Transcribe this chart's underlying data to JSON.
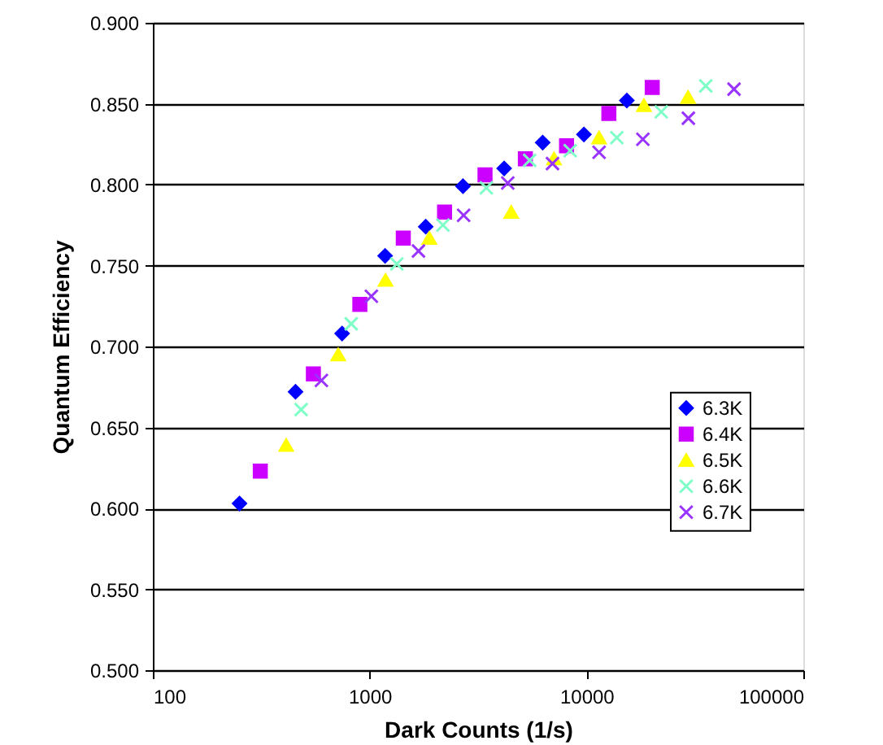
{
  "chart_data": {
    "type": "scatter",
    "xlabel": "Dark Counts (1/s)",
    "ylabel": "Quantum Efficiency",
    "log": "x",
    "xlim": [
      100,
      100000
    ],
    "xticks": [
      100,
      1000,
      10000,
      100000
    ],
    "ylim": [
      0.5,
      0.9
    ],
    "yticks": [
      {
        "value": 0.5,
        "label": "0.500"
      },
      {
        "value": 0.55,
        "label": "0.550"
      },
      {
        "value": 0.6,
        "label": "0.600"
      },
      {
        "value": 0.65,
        "label": "0.650"
      },
      {
        "value": 0.7,
        "label": "0.700"
      },
      {
        "value": 0.75,
        "label": "0.750"
      },
      {
        "value": 0.8,
        "label": "0.800"
      },
      {
        "value": 0.85,
        "label": "0.850"
      },
      {
        "value": 0.9,
        "label": "0.900"
      }
    ],
    "grid": "y",
    "legend": "right",
    "series": [
      {
        "name": "6.3K",
        "color": "#0000ff",
        "marker": "diamond",
        "x": [
          251,
          455,
          746,
          1178,
          1813,
          2693,
          4170,
          6280,
          9730,
          15350
        ],
        "values": [
          0.603,
          0.672,
          0.708,
          0.756,
          0.774,
          0.799,
          0.81,
          0.826,
          0.831,
          0.852
        ]
      },
      {
        "name": "6.4K",
        "color": "#cc00ff",
        "marker": "square",
        "x": [
          313,
          550,
          901,
          1429,
          2215,
          3404,
          5224,
          8090,
          12680,
          20100
        ],
        "values": [
          0.623,
          0.683,
          0.726,
          0.767,
          0.783,
          0.806,
          0.816,
          0.824,
          0.844,
          0.86
        ]
      },
      {
        "name": "6.5K",
        "color": "#ffff00",
        "marker": "triangle",
        "x": [
          412,
          716,
          1183,
          1884,
          4496,
          7080,
          11430,
          18400,
          29400
        ],
        "values": [
          0.639,
          0.695,
          0.741,
          0.767,
          0.783,
          0.816,
          0.829,
          0.849,
          0.854
        ]
      },
      {
        "name": "6.6K",
        "color": "#7fffc8",
        "marker": "cross",
        "x": [
          483,
          822,
          1334,
          2177,
          3451,
          5468,
          8410,
          13800,
          22130,
          35500
        ],
        "values": [
          0.661,
          0.714,
          0.751,
          0.775,
          0.798,
          0.815,
          0.821,
          0.829,
          0.845,
          0.861
        ]
      },
      {
        "name": "6.7K",
        "color": "#9933ff",
        "marker": "cross",
        "x": [
          599,
          1018,
          1679,
          2712,
          4333,
          6970,
          11430,
          18200,
          29500,
          47900
        ],
        "values": [
          0.679,
          0.731,
          0.759,
          0.781,
          0.801,
          0.813,
          0.82,
          0.828,
          0.841,
          0.859
        ]
      }
    ]
  }
}
